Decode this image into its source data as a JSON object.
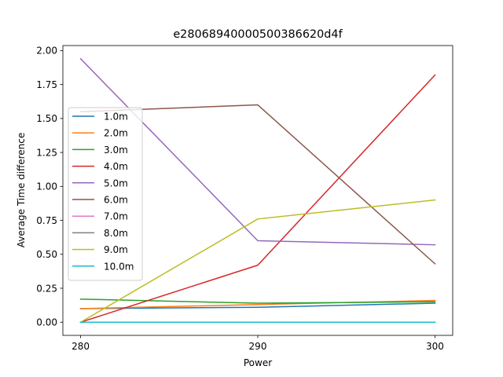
{
  "chart_data": {
    "type": "line",
    "title": "e2806894000050038662​0d4f",
    "xlabel": "Power",
    "ylabel": "Average Time difference",
    "x": [
      280,
      290,
      300
    ],
    "xticks": [
      "280",
      "290",
      "300"
    ],
    "yticks": [
      "0.00",
      "0.25",
      "0.50",
      "0.75",
      "1.00",
      "1.25",
      "1.50",
      "1.75",
      "2.00"
    ],
    "xlim": [
      279,
      301
    ],
    "ylim": [
      -0.097,
      2.037
    ],
    "grid": false,
    "legend_position": "center-left",
    "series": [
      {
        "name": "1.0m",
        "color": "#1f77b4",
        "values": [
          0.1,
          0.11,
          0.14
        ]
      },
      {
        "name": "2.0m",
        "color": "#ff7f0e",
        "values": [
          0.1,
          0.13,
          0.16
        ]
      },
      {
        "name": "3.0m",
        "color": "#2ca02c",
        "values": [
          0.17,
          0.14,
          0.15
        ]
      },
      {
        "name": "4.0m",
        "color": "#d62728",
        "values": [
          0.0,
          0.42,
          1.82
        ]
      },
      {
        "name": "5.0m",
        "color": "#9467bd",
        "values": [
          1.94,
          0.6,
          0.57
        ]
      },
      {
        "name": "6.0m",
        "color": "#8c564b",
        "values": [
          1.55,
          1.6,
          0.43
        ]
      },
      {
        "name": "7.0m",
        "color": "#e377c2",
        "values": [
          0.0,
          0.0,
          0.0
        ]
      },
      {
        "name": "8.0m",
        "color": "#7f7f7f",
        "values": [
          0.0,
          0.0,
          0.0
        ]
      },
      {
        "name": "9.0m",
        "color": "#bcbd22",
        "values": [
          0.0,
          0.76,
          0.9
        ]
      },
      {
        "name": "10.0m",
        "color": "#17becf",
        "values": [
          0.0,
          0.0,
          0.0
        ]
      }
    ]
  }
}
